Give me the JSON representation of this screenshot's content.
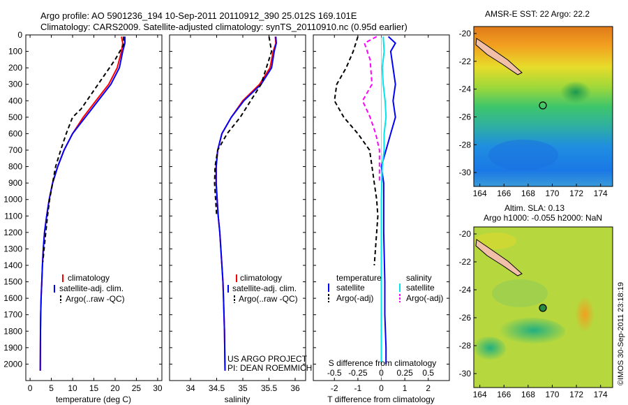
{
  "header": {
    "line1": "Argo profile: AO 5901236_194 10-Sep-2011 20110912_390 25.012S 169.101E",
    "line2": "Climatology: CARS2009. Satellite-adjusted climatology: synTS_20110910.nc (0.95d earlier)"
  },
  "colors": {
    "climatology": "#ff0000",
    "satellite": "#0000ff",
    "argo": "#000000",
    "sal_satellite": "#00e5ee",
    "sal_argo": "#ff00ff"
  },
  "chart_data": [
    {
      "type": "line",
      "name": "temperature",
      "xlabel": "temperature (deg C)",
      "xlim": [
        -1,
        31
      ],
      "ylim": [
        0,
        2100
      ],
      "xticks": [
        0,
        5,
        10,
        15,
        20,
        25,
        30
      ],
      "yticks": [
        0,
        100,
        200,
        300,
        400,
        500,
        600,
        700,
        800,
        900,
        1000,
        1100,
        1200,
        1300,
        1400,
        1500,
        1600,
        1700,
        1800,
        1900,
        2000
      ],
      "legend": [
        "climatology",
        "satellite-adj. clim.",
        "Argo(..raw -QC)"
      ],
      "series": [
        {
          "name": "climatology",
          "x": [
            21.5,
            21.8,
            21.5,
            20.5,
            18.5,
            15.5,
            12.5,
            10,
            8,
            6.5,
            5.3,
            4.5,
            3.9,
            3.4,
            3.1,
            2.9,
            2.75,
            2.6,
            2.5,
            2.45,
            2.4
          ],
          "y": [
            10,
            50,
            100,
            200,
            300,
            400,
            500,
            600,
            700,
            800,
            900,
            1000,
            1100,
            1200,
            1300,
            1400,
            1500,
            1600,
            1700,
            1800,
            2040
          ]
        },
        {
          "name": "satellite-adj. clim.",
          "x": [
            22.3,
            22.3,
            21.8,
            21,
            19,
            16,
            13,
            10,
            8,
            6.5,
            5.3,
            4.5,
            3.9,
            3.4,
            3.1,
            2.9,
            2.75,
            2.6,
            2.5,
            2.45,
            2.4
          ],
          "y": [
            10,
            50,
            100,
            200,
            300,
            400,
            500,
            600,
            700,
            800,
            900,
            1000,
            1100,
            1200,
            1300,
            1400,
            1500,
            1600,
            1700,
            1800,
            2040
          ]
        },
        {
          "name": "Argo(..raw -QC)",
          "x": [
            22,
            22,
            20,
            16,
            12,
            10,
            8.5,
            7.2,
            6,
            5.3,
            4.6,
            4.1,
            3.7,
            3.3,
            3
          ],
          "y": [
            10,
            60,
            150,
            300,
            450,
            500,
            600,
            700,
            800,
            900,
            1000,
            1100,
            1200,
            1300,
            1380
          ]
        }
      ],
      "annotation": ""
    },
    {
      "type": "line",
      "name": "salinity",
      "xlabel": "salinity",
      "xlim": [
        33.6,
        36.2
      ],
      "ylim": [
        0,
        2100
      ],
      "xticks": [
        34,
        34.5,
        35,
        35.5,
        36
      ],
      "legend": [
        "climatology",
        "satellite-adj. clim.",
        "Argo(..raw -QC)"
      ],
      "series": [
        {
          "name": "climatology",
          "x": [
            35.62,
            35.63,
            35.58,
            35.52,
            35.32,
            35.0,
            34.78,
            34.6,
            34.52,
            34.49,
            34.49,
            34.51,
            34.53,
            34.56,
            34.58,
            34.6,
            34.62,
            34.63,
            34.64,
            34.65,
            34.66
          ],
          "y": [
            10,
            50,
            100,
            200,
            300,
            400,
            500,
            600,
            700,
            800,
            900,
            1000,
            1100,
            1200,
            1300,
            1400,
            1500,
            1600,
            1700,
            1800,
            2040
          ]
        },
        {
          "name": "satellite-adj. clim.",
          "x": [
            35.63,
            35.64,
            35.6,
            35.55,
            35.35,
            35.02,
            34.78,
            34.6,
            34.52,
            34.49,
            34.49,
            34.51,
            34.53,
            34.56,
            34.58,
            34.6,
            34.62,
            34.63,
            34.64,
            34.65,
            34.66
          ],
          "y": [
            10,
            50,
            100,
            200,
            300,
            400,
            500,
            600,
            700,
            800,
            900,
            1000,
            1100,
            1200,
            1300,
            1400,
            1500,
            1600,
            1700,
            1800,
            2040
          ]
        },
        {
          "name": "Argo(..raw -QC)",
          "x": [
            35.5,
            35.55,
            35.35,
            34.95,
            34.7,
            34.52,
            34.47,
            34.46,
            34.48,
            34.5
          ],
          "y": [
            10,
            100,
            300,
            500,
            600,
            700,
            800,
            900,
            1000,
            1100
          ]
        }
      ],
      "annotation_line1": "US ARGO PROJECT",
      "annotation_line2": "PI: DEAN ROEMMICH"
    },
    {
      "type": "line",
      "name": "differences",
      "xlabel": "T difference from climatology",
      "xlabel_top": "S difference from climatology",
      "xlim": [
        -2.9,
        2.9
      ],
      "ylim": [
        0,
        2100
      ],
      "xticks": [
        -2,
        -1,
        0,
        1,
        2
      ],
      "xticks_s": [
        "-0.5",
        "-0.25",
        "0",
        "0.25",
        "0.5"
      ],
      "legend_temperature_title": "temperature",
      "legend_salinity_title": "salinity",
      "legend": [
        "satellite",
        "Argo(-adj)",
        "satellite",
        "Argo(-adj)"
      ],
      "series": [
        {
          "name": "T satellite",
          "x": [
            0.3,
            0.6,
            0.4,
            0.5,
            0.6,
            0.5,
            0.6,
            0.4,
            0.2,
            0.0,
            0.1,
            0.1,
            0.1,
            0.15,
            0.15,
            0.2,
            0.2
          ],
          "y": [
            10,
            50,
            100,
            200,
            300,
            400,
            500,
            600,
            700,
            800,
            900,
            1000,
            1200,
            1500,
            1700,
            1900,
            2000
          ]
        },
        {
          "name": "T Argo(-adj)",
          "x": [
            -1,
            -1.2,
            -1.5,
            -1.9,
            -2.0,
            -1.6,
            -1.0,
            -0.5,
            -0.4,
            -0.3,
            -0.2,
            -0.15,
            -0.2,
            -0.25,
            -0.3
          ],
          "y": [
            10,
            100,
            200,
            300,
            400,
            500,
            600,
            700,
            800,
            900,
            1000,
            1100,
            1200,
            1300,
            1400
          ]
        },
        {
          "name": "S satellite",
          "x": [
            0.02,
            0.03,
            0.01,
            0.02,
            0.04,
            0.05,
            0.03,
            0.03,
            0.01,
            0,
            0,
            0,
            0,
            0,
            0
          ],
          "y": [
            10,
            100,
            200,
            300,
            400,
            500,
            600,
            700,
            800,
            1000,
            1200,
            1400,
            1600,
            1800,
            2000
          ]
        },
        {
          "name": "S Argo(-adj)",
          "x": [
            -0.05,
            -0.18,
            -0.12,
            -0.1,
            -0.2,
            -0.12,
            -0.06,
            -0.02,
            -0.02,
            -0.02
          ],
          "y": [
            10,
            50,
            150,
            300,
            400,
            500,
            600,
            700,
            800,
            900
          ]
        }
      ]
    }
  ],
  "maps": {
    "sst_title": "AMSR-E SST: 22 Argo: 22.2",
    "sla_title1": "Altim. SLA: 0.13",
    "sla_title2": "Argo h1000: -0.055 h2000: NaN",
    "xticks": [
      "164",
      "166",
      "168",
      "170",
      "172",
      "174"
    ],
    "yticks": [
      "-20",
      "-22",
      "-24",
      "-26",
      "-28",
      "-30"
    ],
    "sst_values": [
      -20,
      -22,
      -24,
      -26,
      -28,
      -30
    ],
    "lon": [
      163.5,
      175
    ],
    "lat": [
      -19.5,
      -31
    ],
    "float_lon": 169.101,
    "float_lat": -25.012
  },
  "footer": {
    "credit": "©IMOS 30-Sep-2011 23:18:19"
  }
}
